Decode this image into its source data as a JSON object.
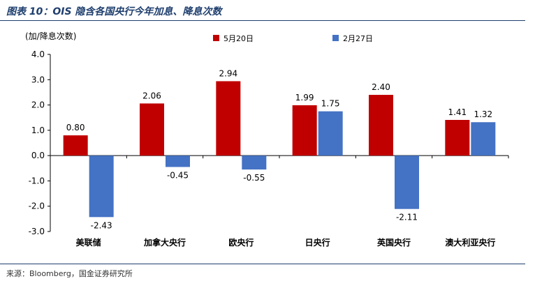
{
  "figure": {
    "title": "图表 10：OIS 隐含各国央行今年加息、降息次数",
    "source": "来源：Bloomberg，国金证券研究所"
  },
  "chart_data": {
    "type": "bar",
    "title": "",
    "ylabel": "(加/降息次数)",
    "xlabel": "",
    "ylim": [
      -3.0,
      4.0
    ],
    "yticks": [
      "4.0",
      "3.0",
      "2.0",
      "1.0",
      "0.0",
      "-1.0",
      "-2.0",
      "-3.0"
    ],
    "ytick_values": [
      4,
      3,
      2,
      1,
      0,
      -1,
      -2,
      -3
    ],
    "categories": [
      "美联储",
      "加拿大央行",
      "欧央行",
      "日央行",
      "英国央行",
      "澳大利亚央行"
    ],
    "series": [
      {
        "name": "5月20日",
        "color": "#c00000",
        "values": [
          0.8,
          2.06,
          2.94,
          1.99,
          2.4,
          1.41
        ],
        "labels": [
          "0.80",
          "2.06",
          "2.94",
          "1.99",
          "2.40",
          "1.41"
        ]
      },
      {
        "name": "2月27日",
        "color": "#4472c4",
        "values": [
          -2.43,
          -0.45,
          -0.55,
          1.75,
          -2.11,
          1.32
        ],
        "labels": [
          "-2.43",
          "-0.45",
          "-0.55",
          "1.75",
          "-2.11",
          "1.32"
        ]
      }
    ],
    "legend": "top-center",
    "grid": false
  }
}
